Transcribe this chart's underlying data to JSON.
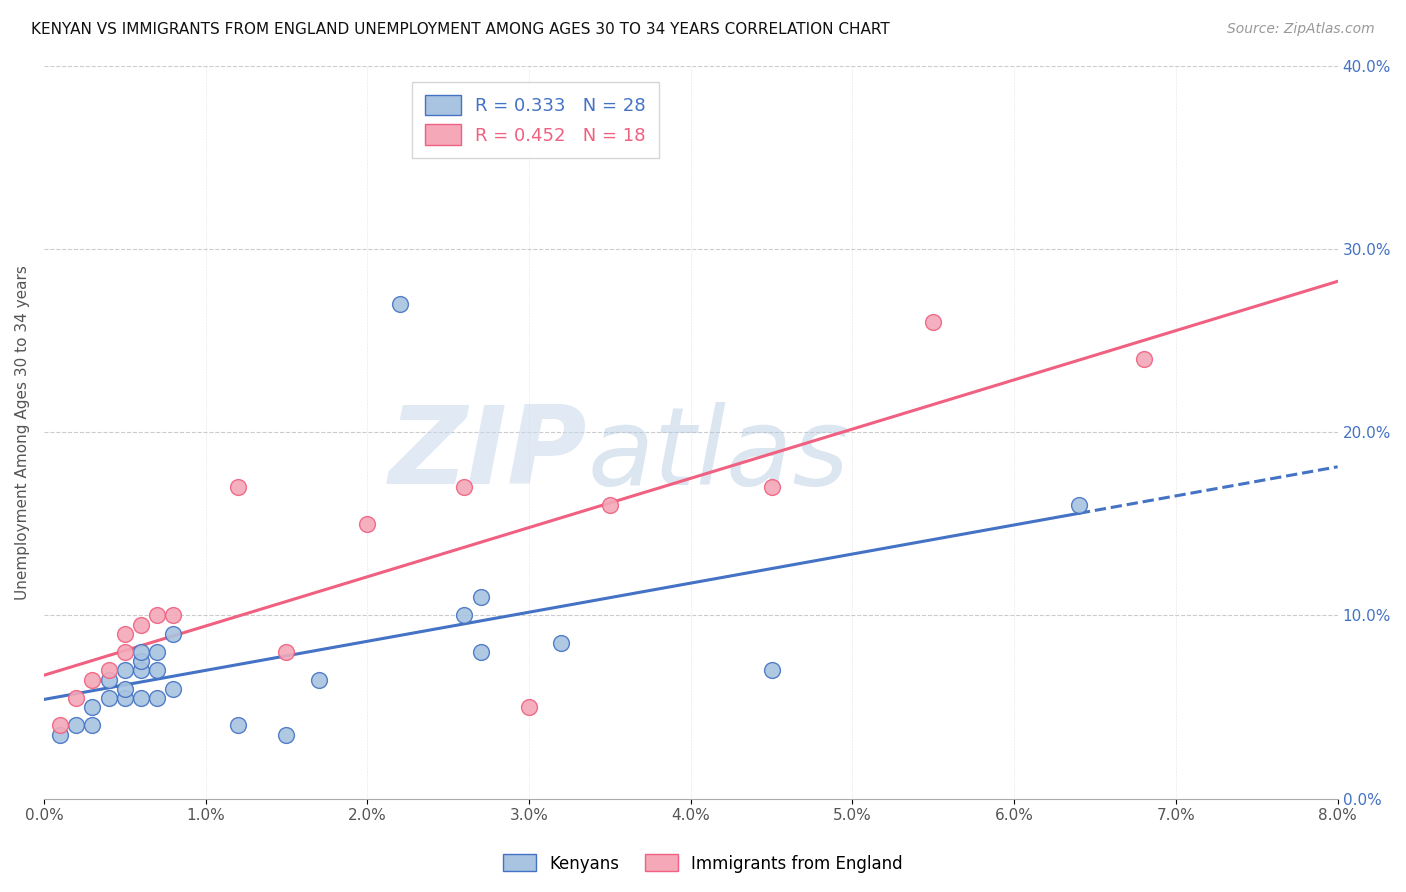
{
  "title": "KENYAN VS IMMIGRANTS FROM ENGLAND UNEMPLOYMENT AMONG AGES 30 TO 34 YEARS CORRELATION CHART",
  "source": "Source: ZipAtlas.com",
  "ylabel": "Unemployment Among Ages 30 to 34 years",
  "x_min": 0.0,
  "x_max": 0.08,
  "y_min": 0.0,
  "y_max": 0.4,
  "x_ticks": [
    0.0,
    0.01,
    0.02,
    0.03,
    0.04,
    0.05,
    0.06,
    0.07,
    0.08
  ],
  "x_tick_labels": [
    "0.0%",
    "1.0%",
    "2.0%",
    "3.0%",
    "4.0%",
    "5.0%",
    "6.0%",
    "7.0%",
    "8.0%"
  ],
  "y_ticks_right": [
    0.0,
    0.1,
    0.2,
    0.3,
    0.4
  ],
  "y_tick_labels_right": [
    "0.0%",
    "10.0%",
    "20.0%",
    "30.0%",
    "40.0%"
  ],
  "kenyan_color": "#a8c4e0",
  "england_color": "#f4a8b8",
  "kenyan_line_color": "#4472c4",
  "england_line_color": "#f06080",
  "kenyan_R": 0.333,
  "kenyan_N": 28,
  "england_R": 0.452,
  "england_N": 18,
  "watermark_zip": "ZIP",
  "watermark_atlas": "atlas",
  "watermark_color_zip": "#c8d8ec",
  "watermark_color_atlas": "#b0c8e0",
  "background_color": "#ffffff",
  "grid_color": "#cccccc",
  "kenyan_x": [
    0.001,
    0.002,
    0.003,
    0.003,
    0.004,
    0.004,
    0.005,
    0.005,
    0.005,
    0.006,
    0.006,
    0.006,
    0.006,
    0.007,
    0.007,
    0.007,
    0.008,
    0.008,
    0.012,
    0.015,
    0.017,
    0.022,
    0.026,
    0.027,
    0.027,
    0.032,
    0.045,
    0.064
  ],
  "kenyan_y": [
    0.035,
    0.04,
    0.04,
    0.05,
    0.055,
    0.065,
    0.055,
    0.06,
    0.07,
    0.055,
    0.07,
    0.075,
    0.08,
    0.055,
    0.07,
    0.08,
    0.09,
    0.06,
    0.04,
    0.035,
    0.065,
    0.27,
    0.1,
    0.11,
    0.08,
    0.085,
    0.07,
    0.16
  ],
  "england_x": [
    0.001,
    0.002,
    0.003,
    0.004,
    0.005,
    0.005,
    0.006,
    0.007,
    0.008,
    0.012,
    0.015,
    0.02,
    0.026,
    0.03,
    0.035,
    0.045,
    0.055,
    0.068
  ],
  "england_y": [
    0.04,
    0.055,
    0.065,
    0.07,
    0.08,
    0.09,
    0.095,
    0.1,
    0.1,
    0.17,
    0.08,
    0.15,
    0.17,
    0.05,
    0.16,
    0.17,
    0.26,
    0.24
  ]
}
